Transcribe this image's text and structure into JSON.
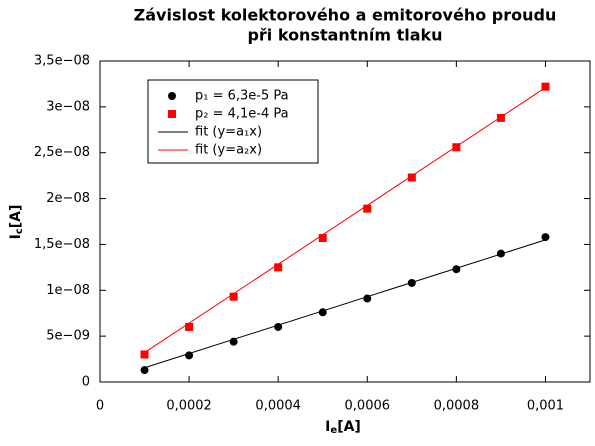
{
  "chart_data": {
    "type": "scatter",
    "title": [
      "Závislost kolektorového a emitorového proudu",
      "při konstantním tlaku"
    ],
    "xlabel": {
      "main": "I",
      "sub": "e",
      "unit": "[A]"
    },
    "ylabel": {
      "main": "I",
      "sub": "c",
      "unit": "[A]"
    },
    "xlim": [
      0,
      0.0011
    ],
    "ylim": [
      0,
      3.5e-08
    ],
    "xticks": [
      0,
      {
        "value": 0.0002,
        "label": "0,0002"
      },
      {
        "value": 0.0004,
        "label": "0,0004"
      },
      {
        "value": 0.0006,
        "label": "0,0006"
      },
      {
        "value": 0.0008,
        "label": "0,0008"
      },
      {
        "value": 0.001,
        "label": "0,001"
      }
    ],
    "yticks": [
      0,
      {
        "value": 5e-09,
        "label": "5e−09"
      },
      {
        "value": 1e-08,
        "label": "1e−08"
      },
      {
        "value": 1.5e-08,
        "label": "1,5e−08"
      },
      {
        "value": 2e-08,
        "label": "2e−08"
      },
      {
        "value": 2.5e-08,
        "label": "2,5e−08"
      },
      {
        "value": 3e-08,
        "label": "3e−08"
      },
      {
        "value": 3.5e-08,
        "label": "3,5e−08"
      }
    ],
    "legend": "upper left",
    "series": [
      {
        "name": "p₁ = 6,3e-5 Pa",
        "color": "#000000",
        "marker": "circle",
        "x": [
          0.0001,
          0.0002,
          0.0003,
          0.0004,
          0.0005,
          0.0006,
          0.0007,
          0.0008,
          0.0009,
          0.001
        ],
        "values": [
          1.3e-09,
          2.9e-09,
          4.4e-09,
          6e-09,
          7.6e-09,
          9.1e-09,
          1.08e-08,
          1.23e-08,
          1.4e-08,
          1.58e-08
        ]
      },
      {
        "name": "p₂ = 4,1e-4 Pa",
        "color": "#ff0000",
        "marker": "square",
        "x": [
          0.0001,
          0.0002,
          0.0003,
          0.0004,
          0.0005,
          0.0006,
          0.0007,
          0.0008,
          0.0009,
          0.001
        ],
        "values": [
          3e-09,
          6e-09,
          9.3e-09,
          1.25e-08,
          1.57e-08,
          1.89e-08,
          2.23e-08,
          2.56e-08,
          2.88e-08,
          3.22e-08
        ]
      },
      {
        "name": "fit (y=a₁x)",
        "color": "#000000",
        "marker": "none",
        "x": [
          0.0001,
          0.001
        ],
        "values": [
          1.55e-09,
          1.55e-08
        ]
      },
      {
        "name": "fit (y=a₂x)",
        "color": "#ff0000",
        "marker": "none",
        "x": [
          0.0001,
          0.001
        ],
        "values": [
          3.21e-09,
          3.21e-08
        ]
      }
    ]
  }
}
